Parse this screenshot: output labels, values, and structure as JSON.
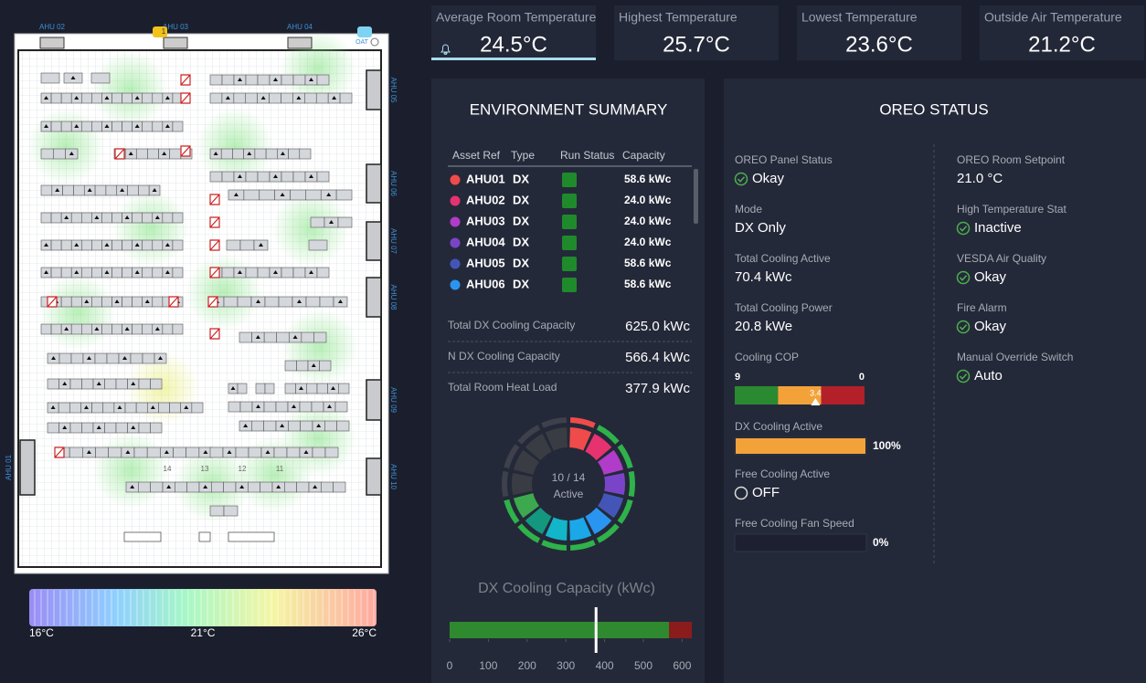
{
  "floor_plan": {
    "top_labels": [
      "AHU 02",
      "AHU 03",
      "AHU 04"
    ],
    "side_labels": [
      "AHU 05",
      "AHU 06",
      "AHU 07",
      "AHU 08",
      "AHU 09",
      "AHU 10"
    ],
    "left_label": "AHU 01",
    "badge": "1",
    "oat_label": "OAT",
    "rack_numbers": [
      "14",
      "13",
      "12",
      "11"
    ],
    "legend": {
      "min": "16°C",
      "mid": "21°C",
      "max": "26°C"
    }
  },
  "kpis": [
    {
      "title": "Average Room Temperature",
      "value": "24.5°C"
    },
    {
      "title": "Highest Temperature",
      "value": "25.7°C"
    },
    {
      "title": "Lowest Temperature",
      "value": "23.6°C"
    },
    {
      "title": "Outside Air Temperature",
      "value": "21.2°C"
    }
  ],
  "environment_summary": {
    "title": "ENVIRONMENT SUMMARY",
    "columns": [
      "Asset Ref",
      "Type",
      "Run Status",
      "Capacity"
    ],
    "rows": [
      {
        "asset": "AHU01",
        "type": "DX",
        "capacity": "58.6 kWc",
        "color": "#ef4b4b",
        "status_color": "#1f8a2c"
      },
      {
        "asset": "AHU02",
        "type": "DX",
        "capacity": "24.0 kWc",
        "color": "#e6336f",
        "status_color": "#1f8a2c"
      },
      {
        "asset": "AHU03",
        "type": "DX",
        "capacity": "24.0 kWc",
        "color": "#b13cc9",
        "status_color": "#1f8a2c"
      },
      {
        "asset": "AHU04",
        "type": "DX",
        "capacity": "24.0 kWc",
        "color": "#7a44c8",
        "status_color": "#1f8a2c"
      },
      {
        "asset": "AHU05",
        "type": "DX",
        "capacity": "58.6 kWc",
        "color": "#4356b8",
        "status_color": "#1f8a2c"
      },
      {
        "asset": "AHU06",
        "type": "DX",
        "capacity": "58.6 kWc",
        "color": "#2a95f0",
        "status_color": "#1f8a2c"
      }
    ],
    "totals": [
      {
        "label": "Total DX Cooling Capacity",
        "value": "625.0 kWc"
      },
      {
        "label": "N DX Cooling Capacity",
        "value": "566.4 kWc"
      },
      {
        "label": "Total Room Heat Load",
        "value": "377.9 kWc"
      }
    ],
    "donut": {
      "label": "10 / 14",
      "sublabel": "Active",
      "segments": [
        {
          "color": "#ef4b4b",
          "ring": "#ef4b4b"
        },
        {
          "color": "#e6336f",
          "ring": "#2fb24a"
        },
        {
          "color": "#b13cc9",
          "ring": "#2fb24a"
        },
        {
          "color": "#7a44c8",
          "ring": "#2fb24a"
        },
        {
          "color": "#4356b8",
          "ring": "#2fb24a"
        },
        {
          "color": "#2a95f0",
          "ring": "#2fb24a"
        },
        {
          "color": "#1aa8e8",
          "ring": "#2fb24a"
        },
        {
          "color": "#13b5c9",
          "ring": "#2fb24a"
        },
        {
          "color": "#14977f",
          "ring": "#2fb24a"
        },
        {
          "color": "#3da94f",
          "ring": "#2fb24a"
        },
        {
          "color": "#3a3c44",
          "ring": "#3e414b"
        },
        {
          "color": "#3a3c44",
          "ring": "#3e414b"
        },
        {
          "color": "#3a3c44",
          "ring": "#3e414b"
        },
        {
          "color": "#3a3c44",
          "ring": "#3e414b"
        }
      ]
    }
  },
  "chart_data": {
    "type": "bullet",
    "title": "DX Cooling Capacity (kWc)",
    "series": [
      {
        "name": "N DX Cooling Capacity",
        "color": "#2f8a2f",
        "values": [
          566.4
        ]
      },
      {
        "name": "Redundant Capacity",
        "color": "#8b1c1c",
        "values": [
          58.6
        ]
      }
    ],
    "marker": 377.9,
    "xlim": [
      0,
      625
    ],
    "xticks": [
      0,
      100,
      200,
      300,
      400,
      500,
      600
    ]
  },
  "oreo_status": {
    "title": "OREO STATUS",
    "left": [
      {
        "label": "OREO Panel Status",
        "value": "Okay",
        "icon": "check"
      },
      {
        "label": "Mode",
        "value": "DX Only",
        "icon": "none"
      },
      {
        "label": "Total Cooling Active",
        "value": "70.4 kWc",
        "icon": "none"
      },
      {
        "label": "Total Cooling Power",
        "value": "20.8 kWe",
        "icon": "none"
      }
    ],
    "cop": {
      "label": "Cooling COP",
      "range": [
        9,
        0
      ],
      "value": 3.4,
      "colors": [
        "#2a8a32",
        "#f3a23a",
        "#b3202a"
      ]
    },
    "dx_active": {
      "label": "DX Cooling Active",
      "value": 100,
      "value_label": "100%",
      "max": 100,
      "color": "#f3a23a"
    },
    "free_cooling": {
      "label": "Free Cooling Active",
      "value": "OFF",
      "icon": "off"
    },
    "fan_speed": {
      "label": "Free Cooling Fan Speed",
      "value": 0,
      "value_label": "0%",
      "max": 100,
      "color": "#f3a23a"
    },
    "right": [
      {
        "label": "OREO Room Setpoint",
        "value": "21.0 °C",
        "icon": "none"
      },
      {
        "label": "High Temperature Stat",
        "value": "Inactive",
        "icon": "check"
      },
      {
        "label": "VESDA Air Quality",
        "value": "Okay",
        "icon": "check"
      },
      {
        "label": "Fire Alarm",
        "value": "Okay",
        "icon": "check"
      },
      {
        "label": "Manual Override Switch",
        "value": "Auto",
        "icon": "check"
      }
    ]
  }
}
